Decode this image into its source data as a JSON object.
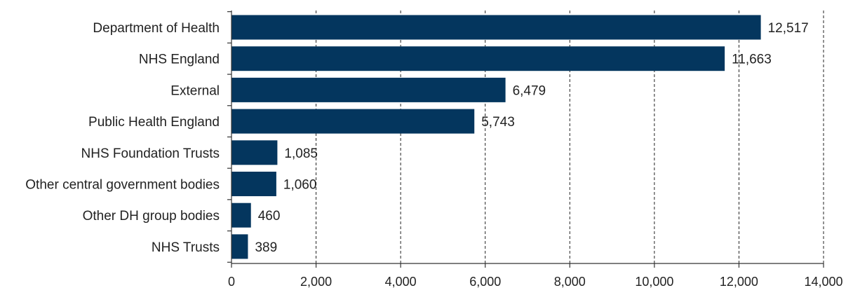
{
  "chart_data": {
    "type": "bar",
    "orientation": "horizontal",
    "categories": [
      "Department of Health",
      "NHS England",
      "External",
      "Public Health England",
      "NHS Foundation Trusts",
      "Other central government bodies",
      "Other DH group bodies",
      "NHS Trusts"
    ],
    "values": [
      12517,
      11663,
      6479,
      5743,
      1085,
      1060,
      460,
      389
    ],
    "value_labels": [
      "12,517",
      "11,663",
      "6,479",
      "5,743",
      "1,085",
      "1,060",
      "460",
      "389"
    ],
    "xlim": [
      0,
      14000
    ],
    "xticks": [
      0,
      2000,
      4000,
      6000,
      8000,
      10000,
      12000,
      14000
    ],
    "xtick_labels": [
      "0",
      "2,000",
      "4,000",
      "6,000",
      "8,000",
      "10,000",
      "12,000",
      "14,000"
    ],
    "grid": "vertical dashed",
    "colors": {
      "bar": "#04365e"
    }
  }
}
